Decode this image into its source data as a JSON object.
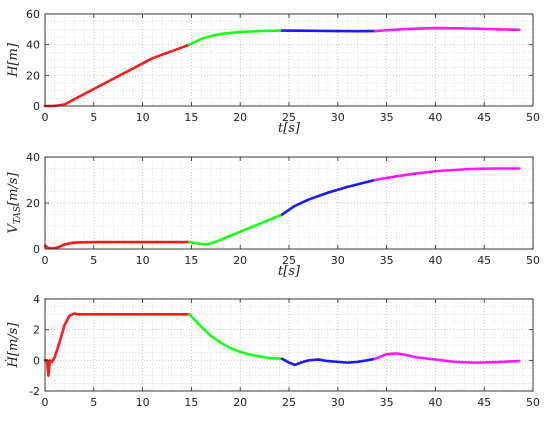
{
  "chart_data": [
    {
      "type": "line",
      "ylabel": "H[m]",
      "ylabel_parts": [
        {
          "t": "H"
        },
        {
          "t": "[m]"
        }
      ],
      "xlabel": "t[s]",
      "xlim": [
        0,
        50
      ],
      "ylim": [
        0,
        60
      ],
      "xticks": [
        0,
        5,
        10,
        15,
        20,
        25,
        30,
        35,
        40,
        45,
        50
      ],
      "yticks": [
        0,
        20,
        40,
        60
      ],
      "grid": true,
      "minor_grid": true,
      "series": [
        {
          "color": "#ff1a1a",
          "x": [
            0,
            1,
            2,
            3,
            5,
            8,
            11,
            14.8
          ],
          "y": [
            0,
            0,
            1,
            4.4,
            11.1,
            21.1,
            31.1,
            40
          ]
        },
        {
          "color": "#1aff1a",
          "x": [
            14.8,
            16,
            17,
            18,
            20,
            22,
            24.3
          ],
          "y": [
            40,
            43.7,
            45.6,
            47,
            48.3,
            48.9,
            49.2
          ]
        },
        {
          "color": "#1a1aff",
          "x": [
            24.3,
            26,
            28,
            30,
            32,
            33.8
          ],
          "y": [
            49.2,
            49.1,
            49,
            48.9,
            48.8,
            48.9
          ]
        },
        {
          "color": "#ff1aff",
          "x": [
            33.8,
            35,
            37,
            40,
            43,
            46,
            48.6
          ],
          "y": [
            48.9,
            49.4,
            50.2,
            50.8,
            50.6,
            50.1,
            49.7
          ]
        }
      ]
    },
    {
      "type": "line",
      "ylabel": "V_TAS[m/s]",
      "ylabel_parts": [
        {
          "t": "V"
        },
        {
          "t": "TAS",
          "sub": true
        },
        {
          "t": "[m/s]"
        }
      ],
      "xlabel": "t[s]",
      "xlim": [
        0,
        50
      ],
      "ylim": [
        0,
        40
      ],
      "xticks": [
        0,
        5,
        10,
        15,
        20,
        25,
        30,
        35,
        40,
        45,
        50
      ],
      "yticks": [
        0,
        20,
        40
      ],
      "grid": true,
      "minor_grid": true,
      "series": [
        {
          "color": "#ff1a1a",
          "x": [
            0,
            0.3,
            0.6,
            1,
            1.5,
            2,
            3,
            5,
            10,
            14.8
          ],
          "y": [
            1.5,
            0.5,
            0.3,
            0.4,
            1,
            2,
            2.8,
            3,
            3,
            3
          ]
        },
        {
          "color": "#1aff1a",
          "x": [
            14.8,
            15.5,
            16.3,
            17,
            18,
            20,
            22,
            24.3
          ],
          "y": [
            3,
            2.5,
            2,
            2.4,
            4,
            7.5,
            11,
            15
          ]
        },
        {
          "color": "#1a1aff",
          "x": [
            24.3,
            25.5,
            27,
            29,
            31,
            33.8
          ],
          "y": [
            15,
            18.5,
            21.5,
            24.5,
            27,
            30
          ]
        },
        {
          "color": "#ff1aff",
          "x": [
            33.8,
            36,
            38,
            40,
            42,
            44,
            46,
            48.6
          ],
          "y": [
            30,
            31.6,
            32.8,
            33.8,
            34.4,
            34.8,
            35,
            35
          ]
        }
      ]
    },
    {
      "type": "line",
      "ylabel": "Ḣ[m/s]",
      "ylabel_parts": [
        {
          "t": "Ḣ"
        },
        {
          "t": "[m/s]"
        }
      ],
      "xlabel": "",
      "xlim": [
        0,
        50
      ],
      "ylim": [
        -2,
        4
      ],
      "xticks": [
        0,
        5,
        10,
        15,
        20,
        25,
        30,
        35,
        40,
        45,
        50
      ],
      "yticks": [
        -2,
        0,
        2,
        4
      ],
      "grid": true,
      "minor_grid": true,
      "series": [
        {
          "color": "#ff1a1a",
          "x": [
            0,
            0.2,
            0.35,
            0.5,
            0.7,
            1,
            1.5,
            2,
            2.5,
            3,
            3.5,
            5,
            10,
            14.8
          ],
          "y": [
            0,
            0,
            -1,
            0,
            -0.1,
            0.2,
            1.2,
            2.3,
            2.9,
            3.05,
            3,
            3,
            3,
            3
          ]
        },
        {
          "color": "#1aff1a",
          "x": [
            14.8,
            16,
            17,
            18,
            19,
            20,
            21,
            22,
            23,
            24.3
          ],
          "y": [
            3,
            2.2,
            1.6,
            1.15,
            0.8,
            0.55,
            0.38,
            0.25,
            0.15,
            0.1
          ]
        },
        {
          "color": "#1a1aff",
          "x": [
            24.3,
            25,
            25.6,
            26.2,
            27,
            28,
            29,
            30,
            31,
            32,
            33,
            33.8
          ],
          "y": [
            0.1,
            -0.15,
            -0.3,
            -0.15,
            0,
            0.05,
            -0.05,
            -0.1,
            -0.15,
            -0.1,
            0,
            0.1
          ]
        },
        {
          "color": "#ff1aff",
          "x": [
            33.8,
            35,
            36,
            37,
            38,
            40,
            42,
            44,
            46,
            48.6
          ],
          "y": [
            0.1,
            0.4,
            0.45,
            0.35,
            0.2,
            0.05,
            -0.1,
            -0.15,
            -0.12,
            -0.05
          ]
        }
      ]
    }
  ]
}
